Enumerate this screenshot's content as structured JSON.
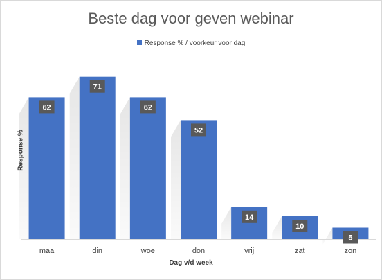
{
  "chart_data": {
    "type": "bar",
    "title": "Beste dag voor geven webinar",
    "xlabel": "Dag v/d week",
    "ylabel": "Response %",
    "categories": [
      "maa",
      "din",
      "woe",
      "don",
      "vrij",
      "zat",
      "zon"
    ],
    "series": [
      {
        "name": "Response % / voorkeur voor dag",
        "values": [
          62,
          71,
          62,
          52,
          14,
          10,
          5
        ]
      }
    ],
    "ylim": [
      0,
      80
    ],
    "grid": false,
    "legend_position": "top",
    "data_labels": true,
    "bar_color": "#4472c4",
    "label_box_color": "#595959"
  }
}
